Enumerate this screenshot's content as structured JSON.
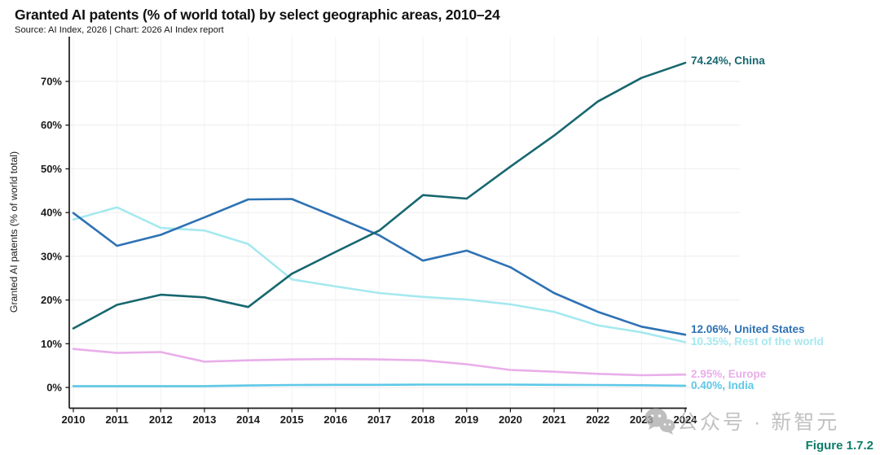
{
  "header": {
    "title": "Granted AI patents (% of world total) by select geographic areas, 2010–24",
    "source": "Source: AI Index, 2026 | Chart: 2026 AI Index report"
  },
  "figure_label": "Figure 1.7.2",
  "watermark": {
    "icon": "wechat-icon",
    "text": "公众号 · 新智元",
    "color": "#adadad"
  },
  "chart_data": {
    "type": "line",
    "title": "Granted AI patents (% of world total) by select geographic areas, 2010–24",
    "xlabel": "",
    "ylabel": "Granted AI patents (% of world total)",
    "x": [
      2010,
      2011,
      2012,
      2013,
      2014,
      2015,
      2016,
      2017,
      2018,
      2019,
      2020,
      2021,
      2022,
      2023,
      2024
    ],
    "ylim": [
      0,
      75
    ],
    "yticks": [
      0,
      10,
      20,
      30,
      40,
      50,
      60,
      70
    ],
    "ytick_suffix": "%",
    "grid": true,
    "legend_position": "right-end-labels",
    "series": [
      {
        "name": "Rest of the world",
        "color": "#a5e9ef",
        "end_label": "10.35%, Rest of the world",
        "values": [
          38.4,
          41.2,
          36.5,
          35.9,
          32.8,
          24.7,
          23.1,
          21.6,
          20.7,
          20.1,
          19.0,
          17.3,
          14.2,
          12.6,
          10.35
        ]
      },
      {
        "name": "United States",
        "color": "#2e72b4",
        "end_label": "12.06%, United States",
        "values": [
          39.9,
          32.4,
          34.9,
          38.9,
          43.0,
          43.1,
          39.0,
          34.8,
          29.0,
          31.3,
          27.5,
          21.6,
          17.3,
          13.9,
          12.06
        ]
      },
      {
        "name": "Europe",
        "color": "#e9aeea",
        "end_label": "2.95%, Europe",
        "values": [
          8.8,
          7.9,
          8.1,
          5.9,
          6.2,
          6.4,
          6.5,
          6.4,
          6.2,
          5.3,
          4.0,
          3.6,
          3.1,
          2.8,
          2.95
        ]
      },
      {
        "name": "India",
        "color": "#5ec8e8",
        "end_label": "0.40%, India",
        "values": [
          0.3,
          0.3,
          0.3,
          0.3,
          0.45,
          0.55,
          0.6,
          0.6,
          0.65,
          0.65,
          0.65,
          0.6,
          0.55,
          0.5,
          0.4
        ]
      },
      {
        "name": "China",
        "color": "#17676f",
        "end_label": "74.24%, China",
        "values": [
          13.5,
          18.9,
          21.2,
          20.6,
          18.4,
          26.0,
          31.0,
          35.9,
          44.0,
          43.2,
          50.5,
          57.6,
          65.4,
          70.8,
          74.24
        ]
      }
    ]
  }
}
